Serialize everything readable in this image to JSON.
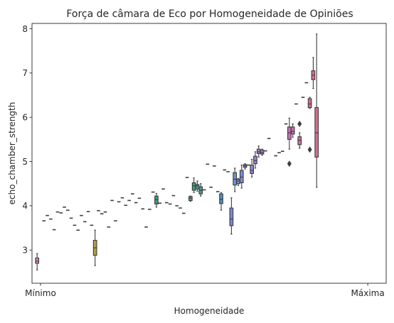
{
  "chart_data": {
    "type": "box",
    "title": "Força de câmara de Eco por Homogeneidade de Opiniões",
    "xlabel": "Homogeneidade",
    "ylabel": "echo_chamber_strength",
    "ylim": [
      2.25,
      8.12
    ],
    "yticks": [
      3,
      4,
      5,
      6,
      7,
      8
    ],
    "xticks": [
      {
        "label": "Mínimo",
        "at": 1
      },
      {
        "label": "Máxima",
        "at": 97
      }
    ],
    "xlim": [
      -1.5,
      102.4
    ],
    "grid": false,
    "legend": "none",
    "series": [
      {
        "x": 0,
        "q1": 2.7,
        "median": 2.75,
        "q3": 2.82,
        "whislo": 2.55,
        "whishi": 2.92,
        "color": "#d9889e"
      },
      {
        "x": 2,
        "q1": 3.66,
        "median": 3.66,
        "q3": 3.66,
        "whislo": 3.66,
        "whishi": 3.66,
        "color": "#d88f8a"
      },
      {
        "x": 3,
        "q1": 3.78,
        "median": 3.78,
        "q3": 3.78,
        "whislo": 3.78,
        "whishi": 3.78,
        "color": "#d8948a"
      },
      {
        "x": 4,
        "q1": 3.7,
        "median": 3.7,
        "q3": 3.7,
        "whislo": 3.7,
        "whishi": 3.7,
        "color": "#d89a88"
      },
      {
        "x": 5,
        "q1": 3.46,
        "median": 3.46,
        "q3": 3.46,
        "whislo": 3.46,
        "whishi": 3.46,
        "color": "#d6a087"
      },
      {
        "x": 6,
        "q1": 3.86,
        "median": 3.86,
        "q3": 3.86,
        "whislo": 3.86,
        "whishi": 3.86,
        "color": "#d2a585"
      },
      {
        "x": 7,
        "q1": 3.84,
        "median": 3.84,
        "q3": 3.84,
        "whislo": 3.84,
        "whishi": 3.84,
        "color": "#cfa985"
      },
      {
        "x": 8,
        "q1": 3.97,
        "median": 3.97,
        "q3": 3.97,
        "whislo": 3.97,
        "whishi": 3.97,
        "color": "#ccad84"
      },
      {
        "x": 9,
        "q1": 3.9,
        "median": 3.9,
        "q3": 3.9,
        "whislo": 3.9,
        "whishi": 3.9,
        "color": "#c9b084"
      },
      {
        "x": 10,
        "q1": 3.72,
        "median": 3.72,
        "q3": 3.72,
        "whislo": 3.72,
        "whishi": 3.72,
        "color": "#c5b383"
      },
      {
        "x": 11,
        "q1": 3.56,
        "median": 3.56,
        "q3": 3.56,
        "whislo": 3.56,
        "whishi": 3.56,
        "color": "#c1b583"
      },
      {
        "x": 12,
        "q1": 3.45,
        "median": 3.45,
        "q3": 3.45,
        "whislo": 3.45,
        "whishi": 3.45,
        "color": "#bdb783"
      },
      {
        "x": 13,
        "q1": 3.78,
        "median": 3.78,
        "q3": 3.78,
        "whislo": 3.78,
        "whishi": 3.78,
        "color": "#b8b984"
      },
      {
        "x": 14,
        "q1": 3.64,
        "median": 3.64,
        "q3": 3.64,
        "whislo": 3.64,
        "whishi": 3.64,
        "color": "#b3bb84"
      },
      {
        "x": 15,
        "q1": 3.87,
        "median": 3.87,
        "q3": 3.87,
        "whislo": 3.87,
        "whishi": 3.87,
        "color": "#aebd85"
      },
      {
        "x": 16,
        "q1": 3.56,
        "median": 3.56,
        "q3": 3.56,
        "whislo": 3.56,
        "whishi": 3.56,
        "color": "#a9be86"
      },
      {
        "x": 17,
        "q1": 2.88,
        "median": 3.05,
        "q3": 3.22,
        "whislo": 2.65,
        "whishi": 3.45,
        "color": "#b59e3e"
      },
      {
        "x": 18,
        "q1": 3.89,
        "median": 3.89,
        "q3": 3.89,
        "whislo": 3.89,
        "whishi": 3.89,
        "color": "#9ec087"
      },
      {
        "x": 19,
        "q1": 3.82,
        "median": 3.82,
        "q3": 3.82,
        "whislo": 3.82,
        "whishi": 3.82,
        "color": "#98c188"
      },
      {
        "x": 20,
        "q1": 3.86,
        "median": 3.86,
        "q3": 3.86,
        "whislo": 3.86,
        "whishi": 3.86,
        "color": "#92c28a"
      },
      {
        "x": 21,
        "q1": 3.52,
        "median": 3.52,
        "q3": 3.52,
        "whislo": 3.52,
        "whishi": 3.52,
        "color": "#8cc38c"
      },
      {
        "x": 22,
        "q1": 4.12,
        "median": 4.12,
        "q3": 4.12,
        "whislo": 4.12,
        "whishi": 4.12,
        "color": "#86c48e"
      },
      {
        "x": 23,
        "q1": 3.66,
        "median": 3.66,
        "q3": 3.66,
        "whislo": 3.66,
        "whishi": 3.66,
        "color": "#80c590"
      },
      {
        "x": 24,
        "q1": 4.09,
        "median": 4.09,
        "q3": 4.09,
        "whislo": 4.09,
        "whishi": 4.09,
        "color": "#7ac593"
      },
      {
        "x": 25,
        "q1": 4.18,
        "median": 4.18,
        "q3": 4.18,
        "whislo": 4.18,
        "whishi": 4.18,
        "color": "#75c596"
      },
      {
        "x": 26,
        "q1": 4.01,
        "median": 4.01,
        "q3": 4.01,
        "whislo": 4.01,
        "whishi": 4.01,
        "color": "#71c599"
      },
      {
        "x": 27,
        "q1": 4.12,
        "median": 4.12,
        "q3": 4.12,
        "whislo": 4.12,
        "whishi": 4.12,
        "color": "#6dc59c"
      },
      {
        "x": 28,
        "q1": 4.27,
        "median": 4.27,
        "q3": 4.27,
        "whislo": 4.27,
        "whishi": 4.27,
        "color": "#6ac4a0"
      },
      {
        "x": 29,
        "q1": 4.07,
        "median": 4.07,
        "q3": 4.07,
        "whislo": 4.07,
        "whishi": 4.07,
        "color": "#68c3a3"
      },
      {
        "x": 30,
        "q1": 4.17,
        "median": 4.17,
        "q3": 4.17,
        "whislo": 4.17,
        "whishi": 4.17,
        "color": "#67c3a7"
      },
      {
        "x": 31,
        "q1": 3.93,
        "median": 3.93,
        "q3": 3.93,
        "whislo": 3.93,
        "whishi": 3.93,
        "color": "#66c2aa"
      },
      {
        "x": 32,
        "q1": 3.52,
        "median": 3.52,
        "q3": 3.52,
        "whislo": 3.52,
        "whishi": 3.52,
        "color": "#66c1ad"
      },
      {
        "x": 33,
        "q1": 3.92,
        "median": 3.92,
        "q3": 3.92,
        "whislo": 3.92,
        "whishi": 3.92,
        "color": "#66c0b0"
      },
      {
        "x": 34,
        "q1": 4.31,
        "median": 4.31,
        "q3": 4.31,
        "whislo": 4.31,
        "whishi": 4.31,
        "color": "#67bfb3"
      },
      {
        "x": 35,
        "q1": 4.04,
        "median": 4.14,
        "q3": 4.22,
        "whislo": 3.97,
        "whishi": 4.28,
        "color": "#3a9e7a"
      },
      {
        "x": 36,
        "q1": 4.06,
        "median": 4.06,
        "q3": 4.06,
        "whislo": 4.06,
        "whishi": 4.06,
        "color": "#69bdb8"
      },
      {
        "x": 37,
        "q1": 4.38,
        "median": 4.38,
        "q3": 4.38,
        "whislo": 4.38,
        "whishi": 4.38,
        "color": "#6bbcbb"
      },
      {
        "x": 38,
        "q1": 4.07,
        "median": 4.07,
        "q3": 4.07,
        "whislo": 4.07,
        "whishi": 4.07,
        "color": "#6dbbbe"
      },
      {
        "x": 39,
        "q1": 4.04,
        "median": 4.04,
        "q3": 4.04,
        "whislo": 4.04,
        "whishi": 4.04,
        "color": "#6fbac0"
      },
      {
        "x": 40,
        "q1": 4.23,
        "median": 4.23,
        "q3": 4.23,
        "whislo": 4.23,
        "whishi": 4.23,
        "color": "#72b9c3"
      },
      {
        "x": 41,
        "q1": 4.0,
        "median": 4.0,
        "q3": 4.0,
        "whislo": 4.0,
        "whishi": 4.0,
        "color": "#75b8c5"
      },
      {
        "x": 42,
        "q1": 3.95,
        "median": 3.95,
        "q3": 3.95,
        "whislo": 3.95,
        "whishi": 3.95,
        "color": "#78b7c7"
      },
      {
        "x": 43,
        "q1": 3.83,
        "median": 3.83,
        "q3": 3.83,
        "whislo": 3.83,
        "whishi": 3.83,
        "color": "#7bb5c9"
      },
      {
        "x": 44,
        "q1": 4.64,
        "median": 4.64,
        "q3": 4.64,
        "whislo": 4.64,
        "whishi": 4.64,
        "color": "#7eb4cb"
      },
      {
        "x": 45,
        "q1": 4.12,
        "median": 4.17,
        "q3": 4.21,
        "whislo": 4.1,
        "whishi": 4.22,
        "color": "#5a9f9a"
      },
      {
        "x": 46,
        "q1": 4.35,
        "median": 4.45,
        "q3": 4.52,
        "whislo": 4.3,
        "whishi": 4.63,
        "color": "#3aa07a"
      },
      {
        "x": 47,
        "q1": 4.38,
        "median": 4.45,
        "q3": 4.48,
        "whislo": 4.33,
        "whishi": 4.56,
        "color": "#4a9aa6"
      },
      {
        "x": 48,
        "q1": 4.27,
        "median": 4.35,
        "q3": 4.43,
        "whislo": 4.22,
        "whishi": 4.5,
        "color": "#3f9d88"
      },
      {
        "x": 49,
        "q1": 4.36,
        "median": 4.36,
        "q3": 4.36,
        "whislo": 4.36,
        "whishi": 4.36,
        "color": "#8baed2"
      },
      {
        "x": 50,
        "q1": 4.94,
        "median": 4.94,
        "q3": 4.94,
        "whislo": 4.94,
        "whishi": 4.94,
        "color": "#8facd4"
      },
      {
        "x": 51,
        "q1": 4.42,
        "median": 4.42,
        "q3": 4.42,
        "whislo": 4.42,
        "whishi": 4.42,
        "color": "#93aad5"
      },
      {
        "x": 52,
        "q1": 4.9,
        "median": 4.9,
        "q3": 4.9,
        "whislo": 4.9,
        "whishi": 4.9,
        "color": "#97a8d6"
      },
      {
        "x": 53,
        "q1": 4.32,
        "median": 4.32,
        "q3": 4.32,
        "whislo": 4.32,
        "whishi": 4.32,
        "color": "#9ba6d7"
      },
      {
        "x": 54,
        "q1": 4.05,
        "median": 4.15,
        "q3": 4.27,
        "whislo": 3.9,
        "whishi": 4.3,
        "color": "#4f8fbf"
      },
      {
        "x": 55,
        "q1": 4.81,
        "median": 4.81,
        "q3": 4.81,
        "whislo": 4.81,
        "whishi": 4.81,
        "color": "#a3a2d8"
      },
      {
        "x": 56,
        "q1": 4.77,
        "median": 4.77,
        "q3": 4.77,
        "whislo": 4.77,
        "whishi": 4.77,
        "color": "#a7a0d8"
      },
      {
        "x": 57,
        "q1": 3.55,
        "median": 3.7,
        "q3": 3.95,
        "whislo": 3.36,
        "whishi": 4.18,
        "color": "#7b88d4"
      },
      {
        "x": 58,
        "q1": 4.47,
        "median": 4.6,
        "q3": 4.75,
        "whislo": 4.32,
        "whishi": 4.85,
        "color": "#6f91d6"
      },
      {
        "x": 59,
        "q1": 4.5,
        "median": 4.56,
        "q3": 4.6,
        "whislo": 4.46,
        "whishi": 4.62,
        "color": "#8290cf"
      },
      {
        "x": 60,
        "q1": 4.52,
        "median": 4.65,
        "q3": 4.8,
        "whislo": 4.4,
        "whishi": 4.92,
        "color": "#7a8ad6"
      },
      {
        "x": 61,
        "q1": 4.87,
        "median": 4.9,
        "q3": 4.93,
        "whislo": 4.83,
        "whishi": 4.95,
        "color": "#8a86c8"
      },
      {
        "x": 62,
        "q1": 4.92,
        "median": 4.92,
        "q3": 4.92,
        "whislo": 4.92,
        "whishi": 4.92,
        "color": "#b698d8"
      },
      {
        "x": 63,
        "q1": 4.73,
        "median": 4.8,
        "q3": 4.92,
        "whislo": 4.65,
        "whishi": 5.05,
        "color": "#8f86d6"
      },
      {
        "x": 64,
        "q1": 4.95,
        "median": 5.02,
        "q3": 5.12,
        "whislo": 4.85,
        "whishi": 5.22,
        "color": "#9a82d6"
      },
      {
        "x": 65,
        "q1": 5.18,
        "median": 5.22,
        "q3": 5.28,
        "whislo": 5.1,
        "whishi": 5.35,
        "color": "#a27ecf"
      },
      {
        "x": 66,
        "q1": 5.17,
        "median": 5.2,
        "q3": 5.26,
        "whislo": 5.14,
        "whishi": 5.28,
        "color": "#ad78cf"
      },
      {
        "x": 67,
        "q1": 5.24,
        "median": 5.24,
        "q3": 5.24,
        "whislo": 5.24,
        "whishi": 5.24,
        "color": "#c692d4"
      },
      {
        "x": 68,
        "q1": 5.52,
        "median": 5.52,
        "q3": 5.52,
        "whislo": 5.52,
        "whishi": 5.52,
        "color": "#ca90d2"
      },
      {
        "x": 70,
        "q1": 5.13,
        "median": 5.13,
        "q3": 5.13,
        "whislo": 5.13,
        "whishi": 5.13,
        "color": "#d28cc9"
      },
      {
        "x": 71,
        "q1": 5.2,
        "median": 5.2,
        "q3": 5.2,
        "whislo": 5.2,
        "whishi": 5.2,
        "color": "#d48ac4"
      },
      {
        "x": 72,
        "q1": 5.23,
        "median": 5.23,
        "q3": 5.23,
        "whislo": 5.23,
        "whishi": 5.23,
        "color": "#d689bf"
      },
      {
        "x": 73,
        "q1": 5.85,
        "median": 5.85,
        "q3": 5.85,
        "whislo": 5.85,
        "whishi": 5.85,
        "color": "#d888ba"
      },
      {
        "x": 74,
        "q1": 5.5,
        "median": 5.65,
        "q3": 5.78,
        "whislo": 5.28,
        "whishi": 5.98,
        "color": "#c772b8",
        "fliers": [
          4.95
        ]
      },
      {
        "x": 75,
        "q1": 5.62,
        "median": 5.68,
        "q3": 5.78,
        "whislo": 5.55,
        "whishi": 5.85,
        "color": "#cc70ad"
      },
      {
        "x": 76,
        "q1": 6.3,
        "median": 6.3,
        "q3": 6.3,
        "whislo": 6.3,
        "whishi": 6.3,
        "color": "#db86ac"
      },
      {
        "x": 77,
        "q1": 5.38,
        "median": 5.48,
        "q3": 5.56,
        "whislo": 5.3,
        "whishi": 5.65,
        "color": "#d06fa4",
        "fliers": [
          5.85
        ]
      },
      {
        "x": 78,
        "q1": 6.45,
        "median": 6.45,
        "q3": 6.45,
        "whislo": 6.45,
        "whishi": 6.45,
        "color": "#dd85a5"
      },
      {
        "x": 79,
        "q1": 6.78,
        "median": 6.78,
        "q3": 6.78,
        "whislo": 6.78,
        "whishi": 6.78,
        "color": "#de85a2"
      },
      {
        "x": 80,
        "q1": 6.22,
        "median": 6.3,
        "q3": 6.42,
        "whislo": 6.2,
        "whishi": 6.45,
        "color": "#d56d98",
        "fliers": [
          5.27
        ]
      },
      {
        "x": 81,
        "q1": 6.85,
        "median": 6.95,
        "q3": 7.05,
        "whislo": 6.65,
        "whishi": 7.35,
        "color": "#d86c91"
      },
      {
        "x": 82,
        "q1": 5.1,
        "median": 5.65,
        "q3": 6.22,
        "whislo": 4.42,
        "whishi": 7.88,
        "color": "#da6d8c"
      }
    ]
  }
}
